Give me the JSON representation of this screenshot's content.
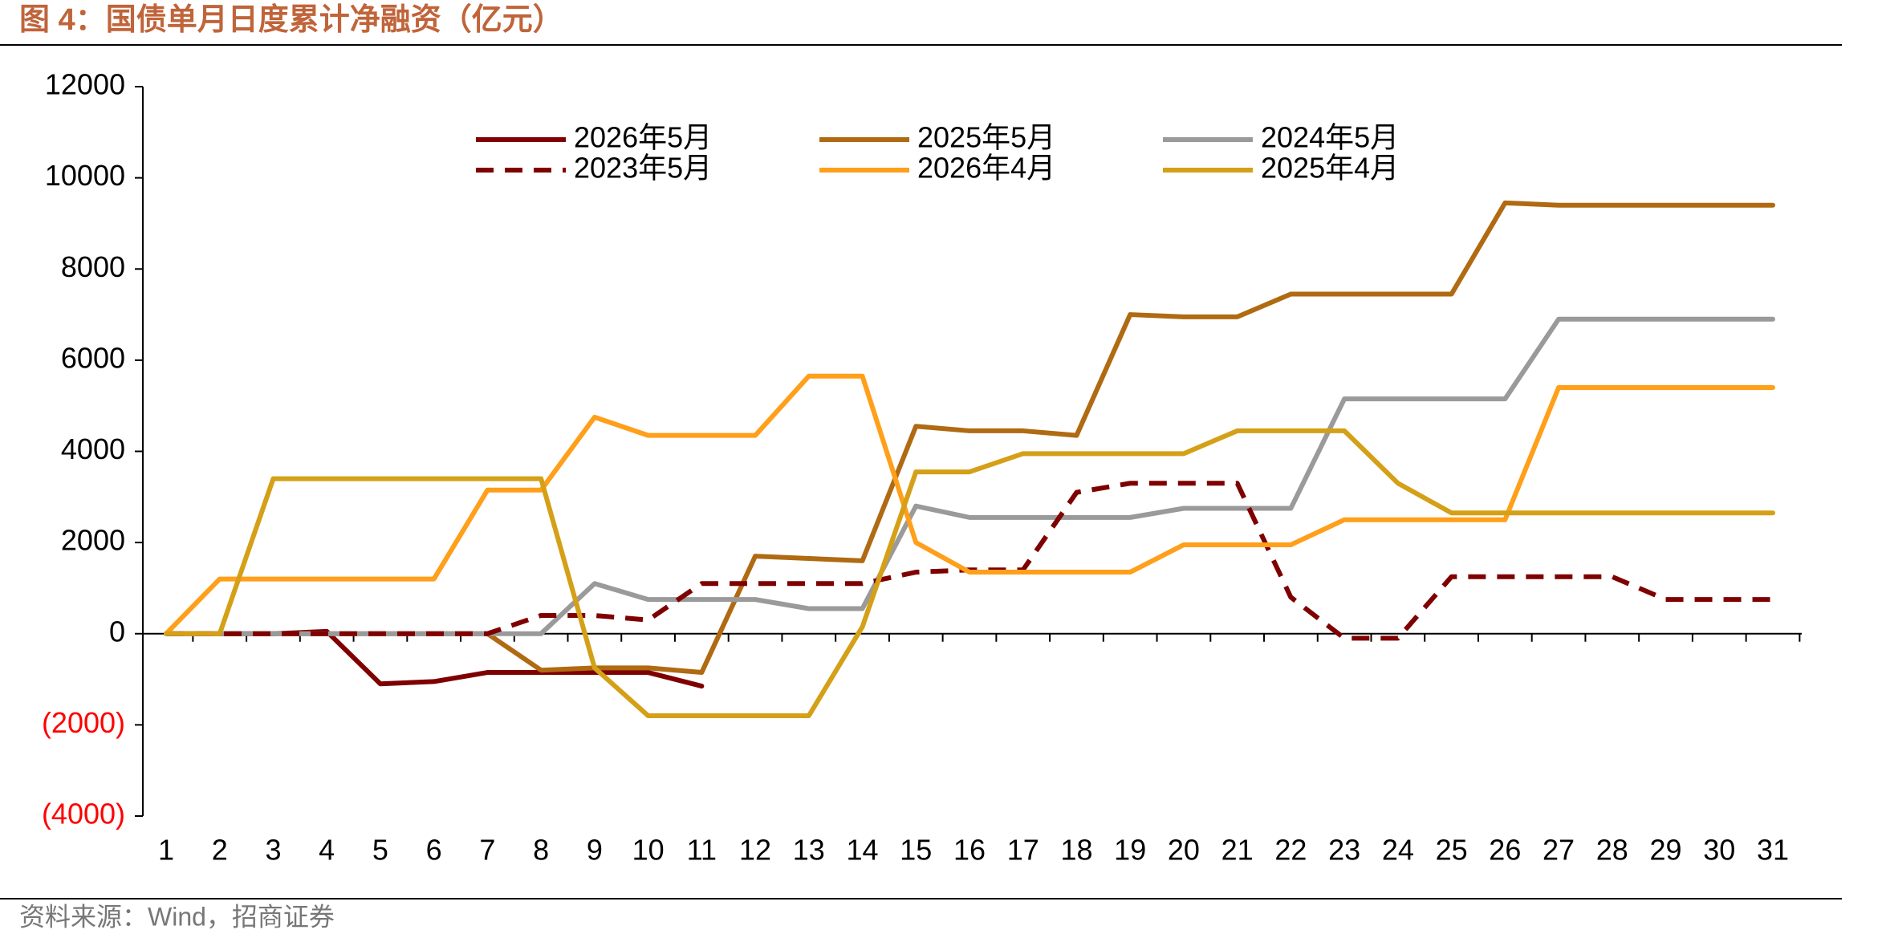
{
  "chart_data": {
    "type": "line",
    "title": "图 4：国债单月日度累计净融资（亿元）",
    "source": "资料来源：Wind，招商证券",
    "categories": [
      1,
      2,
      3,
      4,
      5,
      6,
      7,
      8,
      9,
      10,
      11,
      12,
      13,
      14,
      15,
      16,
      17,
      18,
      19,
      20,
      21,
      22,
      23,
      24,
      25,
      26,
      27,
      28,
      29,
      30,
      31
    ],
    "ylim": [
      -4000,
      12000
    ],
    "yticks": [
      {
        "value": -4000,
        "label": "(4000)"
      },
      {
        "value": -2000,
        "label": "(2000)"
      },
      0,
      2000,
      4000,
      6000,
      8000,
      10000,
      12000
    ],
    "negative_tick_color": "#ff0000",
    "grid": false,
    "series": [
      {
        "name": "2026年5月",
        "color": "#7f0000",
        "dash": false,
        "values": [
          0,
          0,
          0,
          50,
          -1100,
          -1050,
          -850,
          -850,
          -850,
          -850,
          -1150,
          null,
          null,
          null,
          null,
          null,
          null,
          null,
          null,
          null,
          null,
          null,
          null,
          null,
          null,
          null,
          null,
          null,
          null,
          null,
          null
        ]
      },
      {
        "name": "2025年5月",
        "color": "#b06a12",
        "dash": false,
        "values": [
          0,
          0,
          0,
          0,
          0,
          0,
          0,
          -800,
          -750,
          -750,
          -850,
          1700,
          1650,
          1600,
          4550,
          4450,
          4450,
          4350,
          7000,
          6950,
          6950,
          7450,
          7450,
          7450,
          7450,
          9450,
          9400,
          9400,
          9400,
          9400,
          9400
        ]
      },
      {
        "name": "2024年5月",
        "color": "#9a9a9a",
        "dash": false,
        "values": [
          0,
          0,
          0,
          0,
          0,
          0,
          0,
          0,
          1100,
          750,
          750,
          750,
          550,
          550,
          2800,
          2550,
          2550,
          2550,
          2550,
          2750,
          2750,
          2750,
          5150,
          5150,
          5150,
          5150,
          6900,
          6900,
          6900,
          6900,
          6900
        ]
      },
      {
        "name": "2023年5月",
        "color": "#7f0000",
        "dash": true,
        "values": [
          0,
          0,
          0,
          0,
          0,
          0,
          0,
          400,
          400,
          300,
          1100,
          1100,
          1100,
          1100,
          1350,
          1400,
          1400,
          3100,
          3300,
          3300,
          3300,
          800,
          -100,
          -100,
          1250,
          1250,
          1250,
          1250,
          750,
          750,
          750
        ]
      },
      {
        "name": "2026年4月",
        "color": "#ff9f1a",
        "dash": false,
        "values": [
          0,
          1200,
          1200,
          1200,
          1200,
          1200,
          3150,
          3150,
          4750,
          4350,
          4350,
          4350,
          5650,
          5650,
          2000,
          1350,
          1350,
          1350,
          1350,
          1950,
          1950,
          1950,
          2500,
          2500,
          2500,
          2500,
          5400,
          5400,
          5400,
          5400,
          5400
        ]
      },
      {
        "name": "2025年4月",
        "color": "#d4a017",
        "dash": false,
        "values": [
          0,
          0,
          3400,
          3400,
          3400,
          3400,
          3400,
          3400,
          -750,
          -1800,
          -1800,
          -1800,
          -1800,
          150,
          3550,
          3550,
          3950,
          3950,
          3950,
          3950,
          4450,
          4450,
          4450,
          3300,
          2650,
          2650,
          2650,
          2650,
          2650,
          2650,
          2650
        ]
      }
    ]
  }
}
